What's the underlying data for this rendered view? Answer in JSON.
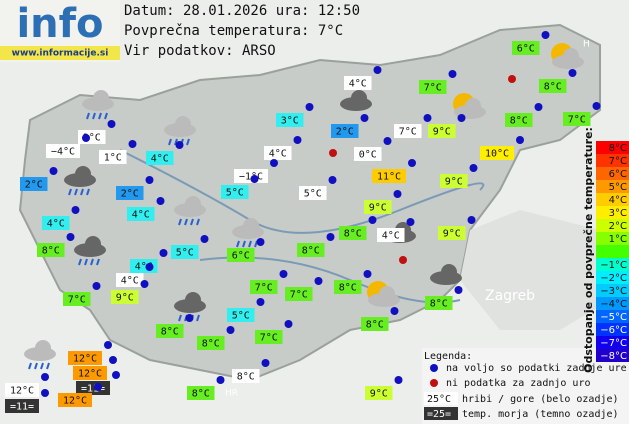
{
  "header": {
    "logo": "info",
    "url": "www.informacije.si",
    "date": "Datum: 28.01.2026 ura: 12:50",
    "average": "Povprečna temperatura: 7°C",
    "source": "Vir podatkov: ARSO"
  },
  "map_labels": [
    "Zagreb",
    "HR",
    "H"
  ],
  "stations": [
    "6°C",
    "4°C",
    "7°C",
    "8°C",
    "3°C",
    "2°C",
    "7°C",
    "9°C",
    "8°C",
    "7°C",
    "2°C",
    "−4°C",
    "1°C",
    "4°C",
    "4°C",
    "0°C",
    "10°C",
    "2°C",
    "−1°C",
    "11°C",
    "9°C",
    "2°C",
    "5°C",
    "5°C",
    "9°C",
    "4°C",
    "4°C",
    "8°C",
    "4°C",
    "9°C",
    "8°C",
    "5°C",
    "6°C",
    "8°C",
    "4°C",
    "4°C",
    "7°C",
    "7°C",
    "8°C",
    "7°C",
    "9°C",
    "8°C",
    "8°C",
    "5°C",
    "8°C",
    "8°C",
    "7°C",
    "12°C",
    "12°C",
    "=11=",
    "12°C",
    "=11=",
    "12°C",
    "8°C",
    "8°C",
    "9°C"
  ],
  "legend": {
    "title": "Legenda:",
    "available": "na voljo so podatki zadnje ure",
    "missing": "ni podatka za zadnjo uro",
    "hills_sample": "25°C",
    "hills": "hribi / gore (belo ozadje)",
    "sea_sample": "=25=",
    "sea": "temp. morja (temno ozadje)"
  },
  "scale": {
    "title": "Odstopanje od povprečne temperature:",
    "labels": [
      "8°C",
      "7°C",
      "6°C",
      "5°C",
      "4°C",
      "3°C",
      "2°C",
      "1°C",
      "−1°C",
      "−2°C",
      "−3°C",
      "−4°C",
      "−5°C",
      "−6°C",
      "−7°C",
      "−8°C"
    ]
  }
}
